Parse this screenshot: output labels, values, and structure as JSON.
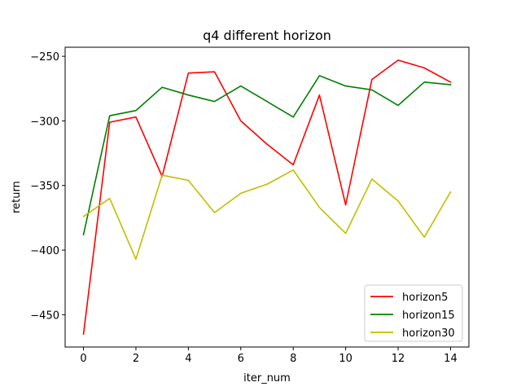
{
  "chart_data": {
    "type": "line",
    "title": "q4 different horizon",
    "xlabel": "iter_num",
    "ylabel": "return",
    "xlim": [
      -0.7,
      14.7
    ],
    "ylim": [
      -475,
      -243
    ],
    "xticks": [
      0,
      2,
      4,
      6,
      8,
      10,
      12,
      14
    ],
    "xtick_labels": [
      "0",
      "2",
      "4",
      "6",
      "8",
      "10",
      "12",
      "14"
    ],
    "yticks": [
      -450,
      -400,
      -350,
      -300,
      -250
    ],
    "ytick_labels": [
      "−450",
      "−400",
      "−350",
      "−300",
      "−250"
    ],
    "grid": false,
    "legend_position": "lower-right",
    "x": [
      0,
      1,
      2,
      3,
      4,
      5,
      6,
      7,
      8,
      9,
      10,
      11,
      12,
      13,
      14
    ],
    "series": [
      {
        "name": "horizon5",
        "color": "#ff0000",
        "values": [
          -465,
          -301,
          -297,
          -343,
          -263,
          -262,
          -300,
          -318,
          -334,
          -280,
          -365,
          -268,
          -253,
          -259,
          -270
        ]
      },
      {
        "name": "horizon15",
        "color": "#008000",
        "values": [
          -388,
          -296,
          -292,
          -274,
          -280,
          -285,
          -273,
          -285,
          -297,
          -265,
          -273,
          -276,
          -288,
          -270,
          -272
        ]
      },
      {
        "name": "horizon30",
        "color": "#bfbf00",
        "values": [
          -374,
          -360,
          -407,
          -342,
          -346,
          -371,
          -356,
          -349,
          -338,
          -367,
          -387,
          -345,
          -362,
          -390,
          -355
        ]
      }
    ]
  }
}
